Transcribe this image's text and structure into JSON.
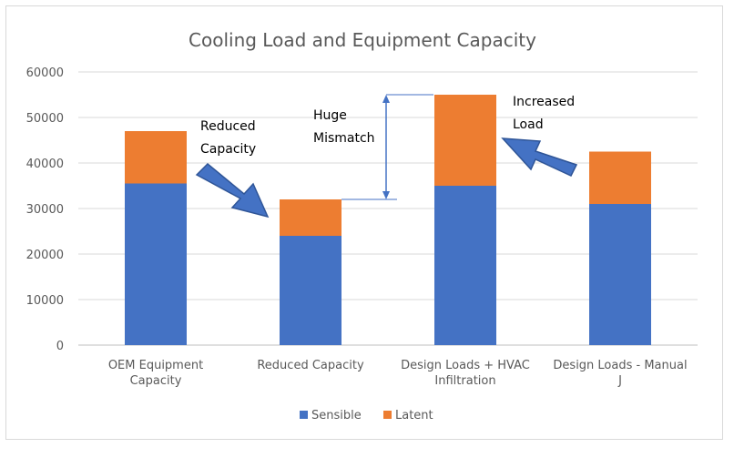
{
  "chart_data": {
    "type": "bar",
    "stacked": true,
    "title": "Cooling Load and Equipment Capacity",
    "categories": [
      [
        "OEM Equipment",
        "Capacity"
      ],
      [
        "Reduced Capacity"
      ],
      [
        "Design Loads + HVAC",
        "Infiltration"
      ],
      [
        "Design Loads - Manual",
        "J"
      ]
    ],
    "series": [
      {
        "name": "Sensible",
        "color": "#4472c4",
        "values": [
          35500,
          24000,
          35000,
          31000
        ]
      },
      {
        "name": "Latent",
        "color": "#ed7d31",
        "values": [
          11500,
          8000,
          20000,
          11500
        ]
      }
    ],
    "ylim": [
      0,
      60000
    ],
    "yticks": [
      0,
      10000,
      20000,
      30000,
      40000,
      50000,
      60000
    ],
    "grid": true,
    "legend": "bottom",
    "annotations": {
      "reduced_capacity": [
        "Reduced",
        "Capacity"
      ],
      "huge_mismatch": [
        "Huge",
        "Mismatch"
      ],
      "increased_load": [
        "Increased",
        "Load"
      ]
    }
  }
}
